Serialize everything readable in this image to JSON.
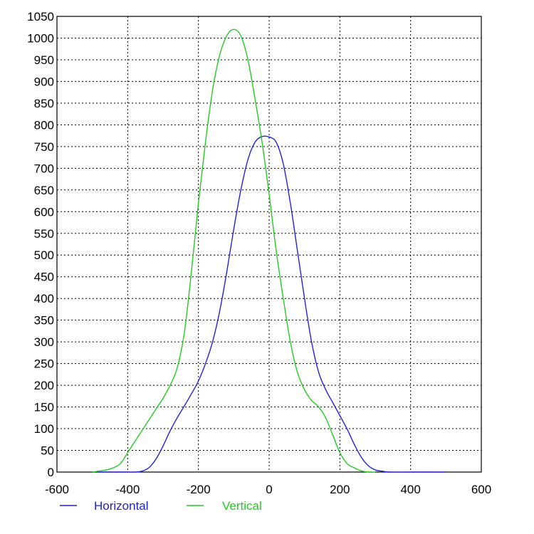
{
  "chart_data": {
    "type": "line",
    "title": "",
    "xlabel": "",
    "ylabel": "",
    "xlim": [
      -600,
      600
    ],
    "ylim": [
      0,
      1050
    ],
    "xticks": [
      -600,
      -400,
      -200,
      0,
      200,
      400,
      600
    ],
    "yticks": [
      0,
      50,
      100,
      150,
      200,
      250,
      300,
      350,
      400,
      450,
      500,
      550,
      600,
      650,
      700,
      750,
      800,
      850,
      900,
      950,
      1000,
      1050
    ],
    "grid": true,
    "legend": "bottom-left",
    "series": [
      {
        "name": "Horizontal",
        "color": "#2222dd",
        "points": [
          [
            -500,
            0
          ],
          [
            -400,
            0
          ],
          [
            -380,
            0
          ],
          [
            -360,
            2
          ],
          [
            -340,
            10
          ],
          [
            -320,
            30
          ],
          [
            -300,
            60
          ],
          [
            -280,
            95
          ],
          [
            -260,
            125
          ],
          [
            -240,
            152
          ],
          [
            -220,
            180
          ],
          [
            -200,
            210
          ],
          [
            -180,
            250
          ],
          [
            -160,
            300
          ],
          [
            -140,
            370
          ],
          [
            -120,
            460
          ],
          [
            -100,
            560
          ],
          [
            -80,
            650
          ],
          [
            -60,
            720
          ],
          [
            -40,
            760
          ],
          [
            -20,
            773
          ],
          [
            0,
            772
          ],
          [
            20,
            760
          ],
          [
            40,
            710
          ],
          [
            60,
            620
          ],
          [
            80,
            510
          ],
          [
            100,
            400
          ],
          [
            120,
            300
          ],
          [
            140,
            230
          ],
          [
            160,
            190
          ],
          [
            180,
            160
          ],
          [
            200,
            130
          ],
          [
            220,
            100
          ],
          [
            240,
            65
          ],
          [
            260,
            35
          ],
          [
            280,
            15
          ],
          [
            300,
            5
          ],
          [
            320,
            2
          ],
          [
            340,
            0
          ],
          [
            400,
            0
          ],
          [
            500,
            0
          ]
        ]
      },
      {
        "name": "Vertical",
        "color": "#22cc22",
        "points": [
          [
            -500,
            0
          ],
          [
            -460,
            5
          ],
          [
            -440,
            10
          ],
          [
            -420,
            20
          ],
          [
            -400,
            45
          ],
          [
            -380,
            70
          ],
          [
            -360,
            95
          ],
          [
            -340,
            120
          ],
          [
            -320,
            145
          ],
          [
            -300,
            170
          ],
          [
            -280,
            200
          ],
          [
            -260,
            240
          ],
          [
            -240,
            320
          ],
          [
            -220,
            460
          ],
          [
            -200,
            620
          ],
          [
            -180,
            760
          ],
          [
            -160,
            880
          ],
          [
            -140,
            960
          ],
          [
            -120,
            1005
          ],
          [
            -100,
            1020
          ],
          [
            -80,
            1005
          ],
          [
            -60,
            950
          ],
          [
            -40,
            860
          ],
          [
            -20,
            760
          ],
          [
            0,
            640
          ],
          [
            20,
            510
          ],
          [
            40,
            400
          ],
          [
            60,
            300
          ],
          [
            80,
            230
          ],
          [
            100,
            190
          ],
          [
            120,
            165
          ],
          [
            140,
            150
          ],
          [
            160,
            125
          ],
          [
            180,
            85
          ],
          [
            200,
            45
          ],
          [
            220,
            20
          ],
          [
            240,
            10
          ],
          [
            260,
            3
          ],
          [
            280,
            0
          ],
          [
            300,
            0
          ]
        ]
      }
    ]
  }
}
